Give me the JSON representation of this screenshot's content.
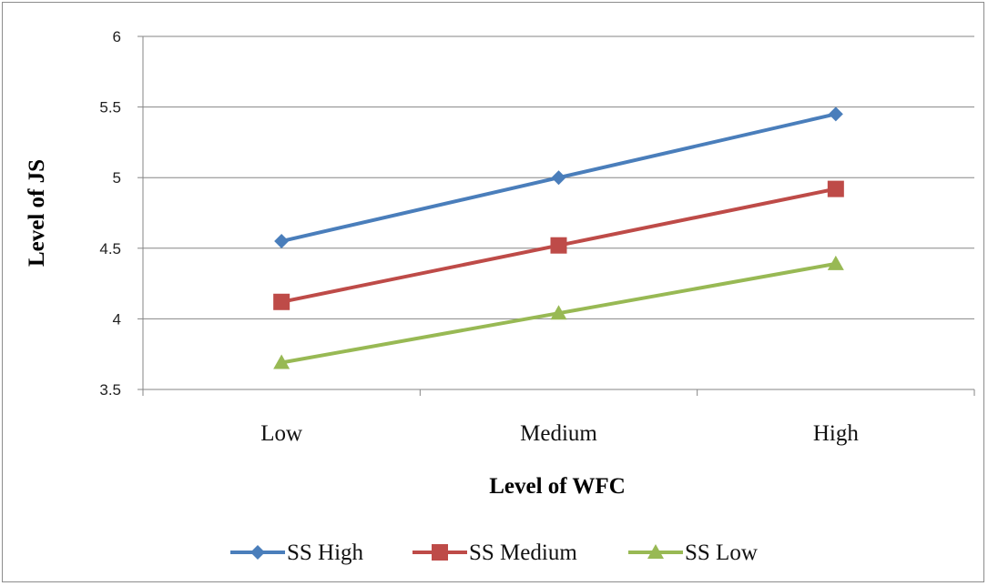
{
  "chart_data": {
    "type": "line",
    "xlabel": "Level of WFC",
    "ylabel": "Level of JS",
    "categories": [
      "Low",
      "Medium",
      "High"
    ],
    "ylim": [
      3.5,
      6
    ],
    "yticks": [
      "3.5",
      "4",
      "4.5",
      "5",
      "5.5",
      "6"
    ],
    "ytick_values": [
      3.5,
      4,
      4.5,
      5,
      5.5,
      6
    ],
    "grid": "horizontal",
    "legend_position": "bottom",
    "series": [
      {
        "name": "SS High",
        "values": [
          4.55,
          5.0,
          5.45
        ],
        "color": "#4a7ebb",
        "marker": "diamond"
      },
      {
        "name": "SS Medium",
        "values": [
          4.12,
          4.52,
          4.92
        ],
        "color": "#be4b48",
        "marker": "square"
      },
      {
        "name": "SS Low",
        "values": [
          3.69,
          4.04,
          4.39
        ],
        "color": "#98b954",
        "marker": "triangle"
      }
    ]
  }
}
